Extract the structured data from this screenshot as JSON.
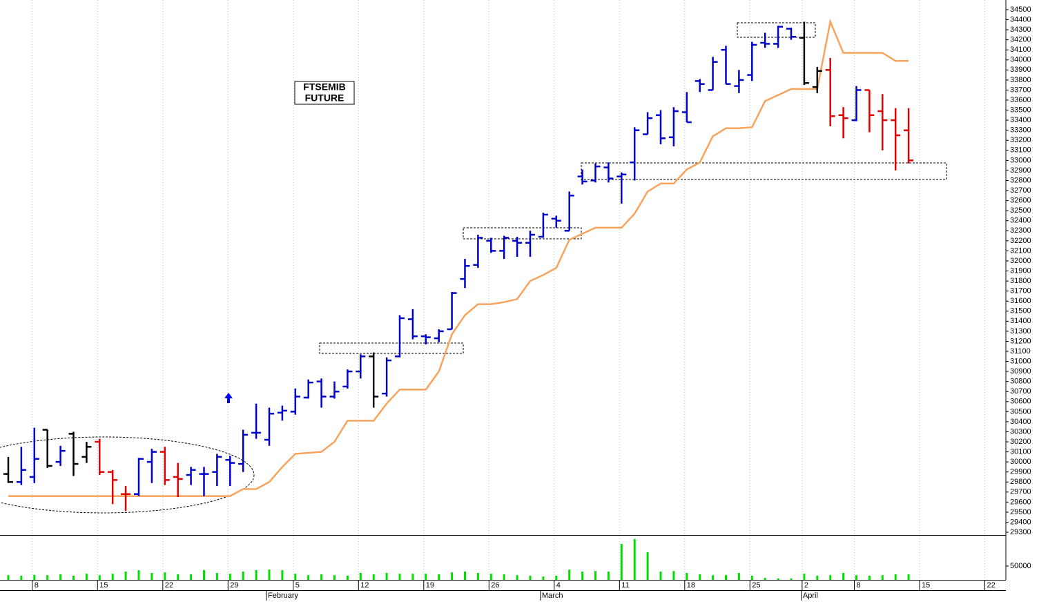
{
  "chart_data": [
    {
      "type": "ohlc",
      "title_lines": [
        "FTSEMIB",
        "FUTURE"
      ],
      "categories": [
        null,
        null,
        "8",
        null,
        null,
        null,
        null,
        "15",
        null,
        null,
        null,
        null,
        "22",
        null,
        null,
        null,
        null,
        "29",
        null,
        null,
        null,
        null,
        "5",
        null,
        null,
        null,
        null,
        "12",
        null,
        null,
        null,
        null,
        "19",
        null,
        null,
        null,
        null,
        "26",
        null,
        null,
        null,
        null,
        "4",
        null,
        null,
        null,
        null,
        "11",
        null,
        null,
        null,
        null,
        "18",
        null,
        null,
        null,
        null,
        "25",
        null,
        null,
        null,
        "2",
        null,
        null,
        null,
        "8",
        null,
        null,
        null,
        null,
        "15",
        null,
        null,
        null,
        null,
        "22",
        null
      ],
      "months": [
        null,
        null,
        null,
        null,
        null,
        null,
        null,
        null,
        null,
        null,
        null,
        null,
        null,
        null,
        null,
        null,
        null,
        null,
        null,
        null,
        "February",
        null,
        null,
        null,
        null,
        null,
        null,
        null,
        null,
        null,
        null,
        null,
        null,
        null,
        null,
        null,
        null,
        null,
        null,
        null,
        null,
        "March",
        null,
        null,
        null,
        null,
        null,
        null,
        null,
        null,
        null,
        null,
        null,
        null,
        null,
        null,
        null,
        null,
        null,
        null,
        null,
        "April",
        null,
        null,
        null,
        null,
        null,
        null,
        null,
        null,
        null,
        null,
        null,
        null,
        null,
        null,
        null
      ],
      "open": [
        29880,
        29800,
        29850,
        30320,
        30000,
        30280,
        30050,
        30200,
        29900,
        29680,
        29680,
        30000,
        30100,
        29850,
        29870,
        29880,
        29900,
        30020,
        29980,
        30290,
        30220,
        30490,
        30500,
        30640,
        30800,
        30650,
        30750,
        30900,
        31050,
        30680,
        31050,
        31420,
        31250,
        31230,
        31320,
        31820,
        31960,
        32200,
        32100,
        32200,
        32180,
        32240,
        32420,
        32300,
        32840,
        32800,
        32930,
        32840,
        32980,
        33260,
        33450,
        33230,
        33480,
        33790,
        33700,
        34100,
        33740,
        33850,
        34170,
        34160,
        34310,
        34220,
        33730,
        33900,
        33450,
        33400,
        33700,
        33490,
        33400,
        33300,
        null,
        null,
        null,
        null,
        null,
        null,
        null
      ],
      "high": [
        30050,
        30150,
        30340,
        30320,
        30160,
        30300,
        30200,
        30230,
        29920,
        29760,
        30040,
        30130,
        30150,
        29990,
        29950,
        29950,
        30080,
        30060,
        30320,
        30580,
        30540,
        30560,
        30730,
        30820,
        30830,
        30800,
        30920,
        31070,
        31090,
        31040,
        31460,
        31520,
        31270,
        31320,
        31690,
        32020,
        32260,
        32230,
        32250,
        32240,
        32300,
        32480,
        32450,
        32690,
        32910,
        32970,
        32980,
        32880,
        33330,
        33480,
        33500,
        33530,
        33680,
        33810,
        34030,
        34140,
        33900,
        34180,
        34270,
        34340,
        34320,
        34380,
        33930,
        34020,
        33530,
        33740,
        33700,
        33660,
        33520,
        33520,
        null,
        null,
        null,
        null,
        null,
        null,
        null
      ],
      "low": [
        29790,
        29770,
        29790,
        29940,
        29960,
        29860,
        29990,
        29870,
        29580,
        29510,
        29660,
        29790,
        29770,
        29650,
        29770,
        29660,
        29760,
        29760,
        29900,
        30230,
        30160,
        30410,
        30470,
        30630,
        30540,
        30630,
        30730,
        30830,
        30540,
        30650,
        31040,
        31220,
        31170,
        31190,
        31320,
        31730,
        31930,
        32080,
        32020,
        32040,
        32040,
        32230,
        32330,
        32300,
        32760,
        32780,
        32780,
        32570,
        32800,
        33260,
        33160,
        33140,
        33380,
        33680,
        33700,
        33760,
        33670,
        33790,
        34120,
        34120,
        34200,
        33750,
        33670,
        33340,
        33220,
        33390,
        33280,
        33100,
        32900,
        32970,
        null,
        null,
        null,
        null,
        null,
        null,
        null
      ],
      "close": [
        29800,
        29920,
        30030,
        29960,
        30110,
        29980,
        30150,
        29900,
        29820,
        29680,
        30030,
        30100,
        29820,
        29830,
        29920,
        29880,
        30050,
        29990,
        30270,
        30290,
        30480,
        30510,
        30650,
        30790,
        30650,
        30700,
        30900,
        31050,
        30650,
        31010,
        31430,
        31250,
        31240,
        31300,
        31680,
        31950,
        32230,
        32100,
        32230,
        32180,
        32260,
        32460,
        32400,
        32650,
        32790,
        32940,
        32820,
        32860,
        33300,
        33420,
        33220,
        33490,
        33380,
        33760,
        33980,
        33760,
        33800,
        34150,
        34160,
        34330,
        34230,
        33770,
        33890,
        33440,
        33420,
        33700,
        33450,
        33400,
        33250,
        33000,
        null,
        null,
        null,
        null,
        null,
        null,
        null
      ],
      "colors": [
        "#000000",
        "#0000cc",
        "#0000cc",
        "#000000",
        "#0000cc",
        "#000000",
        "#000000",
        "#e00000",
        "#e00000",
        "#e00000",
        "#0000cc",
        "#0000cc",
        "#e00000",
        "#e00000",
        "#0000cc",
        "#0000cc",
        "#0000cc",
        "#0000cc",
        "#0000cc",
        "#0000cc",
        "#0000cc",
        "#0000cc",
        "#0000cc",
        "#0000cc",
        "#0000cc",
        "#0000cc",
        "#0000cc",
        "#0000cc",
        "#000000",
        "#0000cc",
        "#0000cc",
        "#0000cc",
        "#0000cc",
        "#0000cc",
        "#0000cc",
        "#0000cc",
        "#0000cc",
        "#0000cc",
        "#0000cc",
        "#0000cc",
        "#0000cc",
        "#0000cc",
        "#0000cc",
        "#0000cc",
        "#0000cc",
        "#0000cc",
        "#0000cc",
        "#0000cc",
        "#0000cc",
        "#0000cc",
        "#0000cc",
        "#0000cc",
        "#0000cc",
        "#0000cc",
        "#0000cc",
        "#0000cc",
        "#0000cc",
        "#0000cc",
        "#0000cc",
        "#0000cc",
        "#0000cc",
        "#000000",
        "#000000",
        "#e00000",
        "#e00000",
        "#0000cc",
        "#e00000",
        "#e00000",
        "#e00000",
        "#e00000",
        null,
        null,
        null,
        null,
        null,
        null,
        null
      ],
      "line": {
        "color": "#f7a35c",
        "values": [
          29660,
          29660,
          29660,
          29660,
          29660,
          29660,
          29660,
          29660,
          29660,
          29660,
          29660,
          29660,
          29660,
          29660,
          29660,
          29660,
          29660,
          29660,
          29730,
          29730,
          29800,
          29950,
          30080,
          30090,
          30100,
          30200,
          30410,
          30410,
          30410,
          30580,
          30720,
          30720,
          30720,
          30900,
          31270,
          31460,
          31570,
          31570,
          31590,
          31620,
          31800,
          31860,
          31930,
          32210,
          32270,
          32330,
          32330,
          32330,
          32470,
          32690,
          32770,
          32770,
          32910,
          32980,
          33240,
          33320,
          33320,
          33330,
          33590,
          33650,
          33710,
          33710,
          33710,
          34380,
          34070,
          34070,
          34070,
          34070,
          33990,
          33990,
          null,
          null,
          null,
          null,
          null,
          null,
          null
        ]
      },
      "ylim": [
        29273,
        34596
      ],
      "yticks": [
        29300,
        29400,
        29500,
        29600,
        29700,
        29800,
        29900,
        30000,
        30100,
        30200,
        30300,
        30400,
        30500,
        30600,
        30700,
        30800,
        30900,
        31000,
        31100,
        31200,
        31300,
        31400,
        31500,
        31600,
        31700,
        31800,
        31900,
        32000,
        32100,
        32200,
        32300,
        32400,
        32500,
        32600,
        32700,
        32800,
        32900,
        33000,
        33100,
        33200,
        33300,
        33400,
        33500,
        33600,
        33700,
        33800,
        33900,
        34000,
        34100,
        34200,
        34300,
        34400,
        34500
      ]
    },
    {
      "type": "bar",
      "color": "#00e000",
      "values": [
        17000,
        15000,
        18000,
        17000,
        20000,
        15000,
        22000,
        17000,
        22000,
        30000,
        35000,
        25000,
        27000,
        20000,
        20000,
        35000,
        25000,
        22000,
        30000,
        35000,
        37000,
        35000,
        22000,
        17000,
        20000,
        17000,
        15000,
        25000,
        20000,
        25000,
        22000,
        22000,
        22000,
        20000,
        27000,
        30000,
        25000,
        22000,
        20000,
        17000,
        15000,
        12000,
        15000,
        37000,
        30000,
        32000,
        30000,
        130000,
        148000,
        100000,
        30000,
        32000,
        25000,
        20000,
        17000,
        17000,
        25000,
        15000,
        7000,
        5000,
        5000,
        22000,
        15000,
        17000,
        25000,
        17000,
        15000,
        17000,
        20000,
        20000,
        null,
        null,
        null,
        null,
        null,
        null,
        null
      ],
      "ylim": [
        0,
        160000
      ],
      "yticks": [
        50000
      ]
    }
  ]
}
